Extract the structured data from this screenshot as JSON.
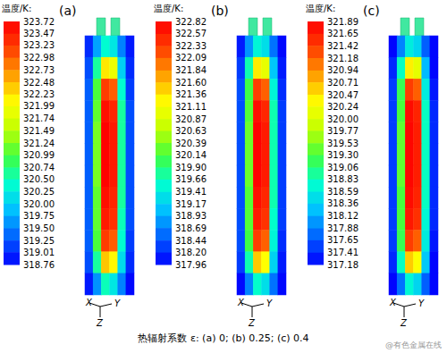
{
  "chart_data": [
    {
      "type": "heatmap",
      "title": "(a)",
      "colorbar_title": "温度/K:",
      "tick_labels": false,
      "axis_labels": [
        "X",
        "Y",
        "Z"
      ],
      "colorbar_range": [
        318.76,
        323.72
      ],
      "colorbar_ticks": [
        323.72,
        323.47,
        323.23,
        322.98,
        322.73,
        322.48,
        322.23,
        321.99,
        321.74,
        321.49,
        321.24,
        320.99,
        320.74,
        {
          "value": 320.5,
          "label": "320.50"
        },
        320.25,
        {
          "value": 320,
          "label": "320.00"
        },
        319.75,
        {
          "value": 319.5,
          "label": "319.50"
        },
        319.25,
        319.01,
        318.76
      ],
      "cells": [
        [
          319.0,
          319.7,
          320.4,
          320.2,
          319.5,
          318.9
        ],
        [
          319.2,
          320.6,
          322.2,
          321.9,
          320.0,
          319.0
        ],
        [
          319.3,
          321.0,
          323.2,
          323.0,
          320.4,
          319.1
        ],
        [
          319.3,
          321.1,
          323.6,
          323.4,
          320.6,
          319.2
        ],
        [
          319.3,
          321.2,
          323.7,
          323.5,
          320.6,
          319.2
        ],
        [
          319.3,
          321.2,
          323.7,
          323.5,
          320.6,
          319.2
        ],
        [
          319.3,
          321.2,
          323.7,
          323.5,
          320.6,
          319.2
        ],
        [
          319.3,
          321.1,
          323.6,
          323.4,
          320.6,
          319.2
        ],
        [
          319.3,
          321.1,
          323.5,
          323.3,
          320.5,
          319.2
        ],
        [
          319.3,
          321.0,
          323.2,
          323.0,
          320.4,
          319.1
        ],
        [
          319.2,
          320.6,
          322.4,
          322.1,
          320.1,
          319.0
        ],
        [
          318.9,
          319.6,
          320.5,
          320.2,
          319.5,
          318.8
        ]
      ]
    },
    {
      "type": "heatmap",
      "title": "(b)",
      "colorbar_title": "温度/K:",
      "tick_labels": false,
      "axis_labels": [
        "X",
        "Y",
        "Z"
      ],
      "colorbar_range": [
        317.96,
        322.82
      ],
      "colorbar_ticks": [
        322.82,
        322.57,
        322.33,
        322.09,
        321.84,
        {
          "value": 321.6,
          "label": "321.60"
        },
        321.36,
        321.11,
        320.87,
        320.63,
        320.39,
        320.14,
        {
          "value": 319.9,
          "label": "319.90"
        },
        319.66,
        319.41,
        319.17,
        318.93,
        318.69,
        318.44,
        {
          "value": 318.2,
          "label": "318.20"
        },
        317.96
      ],
      "cells": [
        [
          318.1,
          318.8,
          319.5,
          319.3,
          318.6,
          318.0
        ],
        [
          318.3,
          319.7,
          321.3,
          321.0,
          319.1,
          318.1
        ],
        [
          318.4,
          320.1,
          322.3,
          322.1,
          319.5,
          318.2
        ],
        [
          318.4,
          320.2,
          322.7,
          322.5,
          319.7,
          318.3
        ],
        [
          318.4,
          320.3,
          322.8,
          322.6,
          319.7,
          318.3
        ],
        [
          318.4,
          320.3,
          322.8,
          322.6,
          319.7,
          318.3
        ],
        [
          318.4,
          320.3,
          322.8,
          322.6,
          319.7,
          318.3
        ],
        [
          318.4,
          320.2,
          322.7,
          322.5,
          319.7,
          318.3
        ],
        [
          318.4,
          320.2,
          322.6,
          322.4,
          319.6,
          318.3
        ],
        [
          318.4,
          320.1,
          322.3,
          322.1,
          319.5,
          318.2
        ],
        [
          318.3,
          319.7,
          321.5,
          321.2,
          319.2,
          318.1
        ],
        [
          318.0,
          318.7,
          319.6,
          319.3,
          318.6,
          318.0
        ]
      ]
    },
    {
      "type": "heatmap",
      "title": "(c)",
      "colorbar_title": "温度/K:",
      "tick_labels": false,
      "axis_labels": [
        "X",
        "Y",
        "Z"
      ],
      "colorbar_range": [
        317.18,
        321.89
      ],
      "colorbar_ticks": [
        321.89,
        321.65,
        321.42,
        321.18,
        320.94,
        320.71,
        320.47,
        320.24,
        {
          "value": 320,
          "label": "320.00"
        },
        319.77,
        319.53,
        {
          "value": 319.3,
          "label": "319.30"
        },
        319.06,
        318.83,
        318.59,
        318.36,
        318.12,
        317.88,
        317.65,
        317.41,
        317.18
      ],
      "cells": [
        [
          317.2,
          317.9,
          318.6,
          318.4,
          317.7,
          317.2
        ],
        [
          317.4,
          318.8,
          320.4,
          320.1,
          318.2,
          317.2
        ],
        [
          317.5,
          319.2,
          321.4,
          321.2,
          318.6,
          317.3
        ],
        [
          317.5,
          319.3,
          321.8,
          321.6,
          318.8,
          317.4
        ],
        [
          317.5,
          319.4,
          321.85,
          321.65,
          318.8,
          317.4
        ],
        [
          317.5,
          319.4,
          321.85,
          321.65,
          318.8,
          317.4
        ],
        [
          317.5,
          319.4,
          321.85,
          321.65,
          318.8,
          317.4
        ],
        [
          317.5,
          319.3,
          321.8,
          321.6,
          318.8,
          317.4
        ],
        [
          317.5,
          319.3,
          321.7,
          321.5,
          318.7,
          317.4
        ],
        [
          317.5,
          319.2,
          321.4,
          321.2,
          318.6,
          317.3
        ],
        [
          317.4,
          318.8,
          320.6,
          320.3,
          318.3,
          317.2
        ],
        [
          317.2,
          317.8,
          318.7,
          318.4,
          317.7,
          317.2
        ]
      ]
    }
  ],
  "caption": "热辐射系数 ε: (a) 0; (b) 0.25; (c) 0.4",
  "watermark": "@有色金属在线"
}
